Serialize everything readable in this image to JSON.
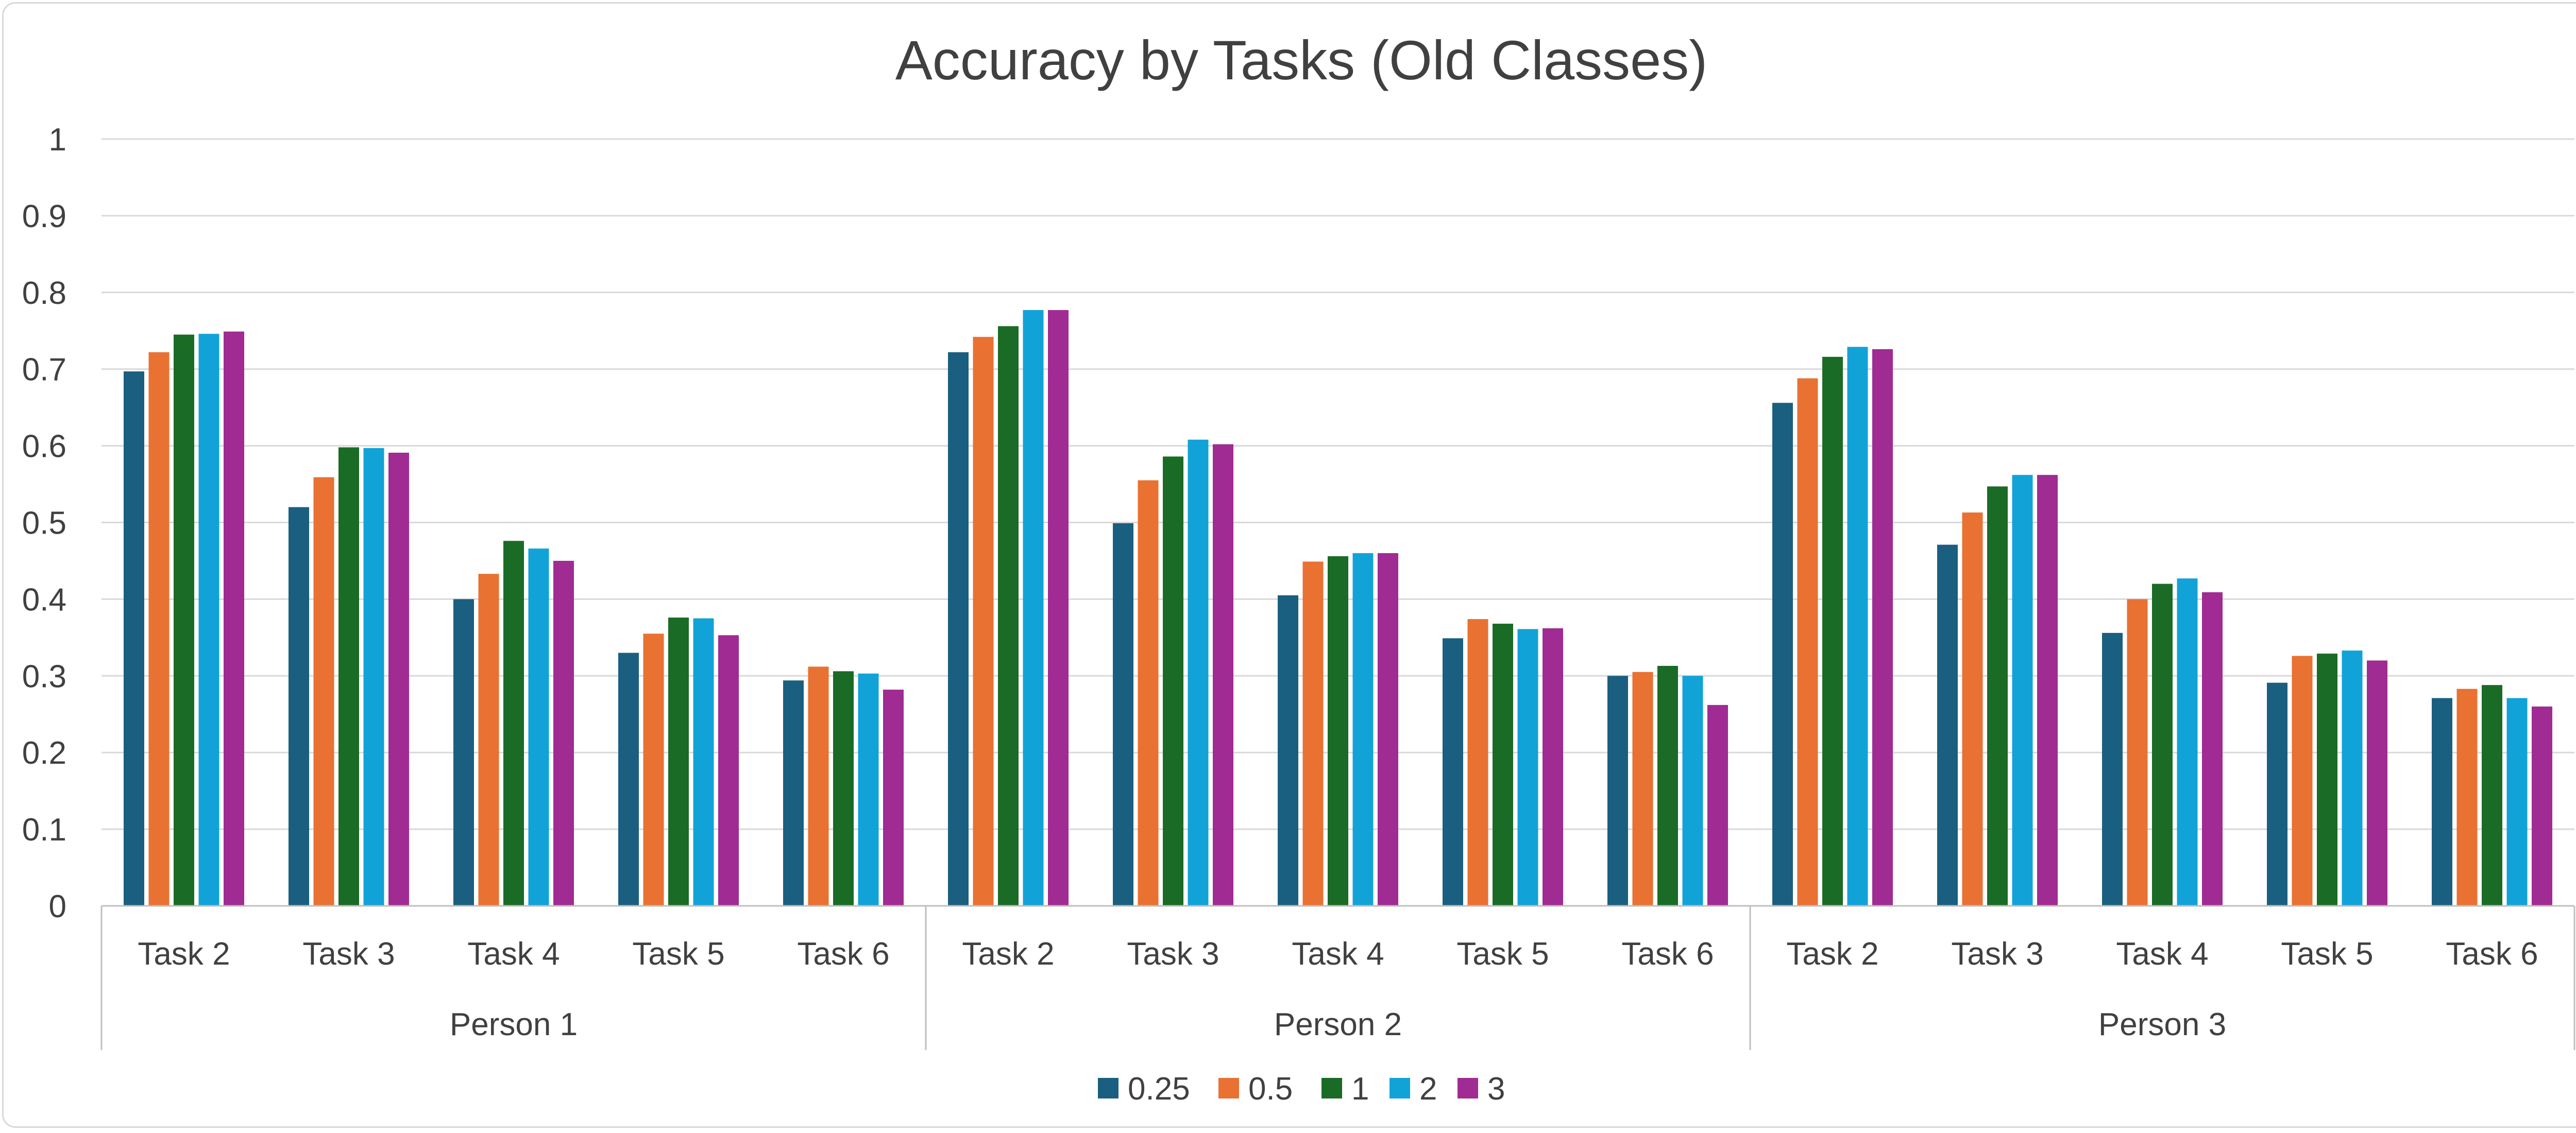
{
  "chart_data": {
    "type": "bar",
    "title": "Accuracy by Tasks (Old Classes)",
    "xlabel": "",
    "ylabel": "",
    "ylim": [
      0,
      1
    ],
    "yticks": [
      0,
      0.1,
      0.2,
      0.3,
      0.4,
      0.5,
      0.6,
      0.7,
      0.8,
      0.9,
      1
    ],
    "ytick_labels": [
      "0",
      "0.1",
      "0.2",
      "0.3",
      "0.4",
      "0.5",
      "0.6",
      "0.7",
      "0.8",
      "0.9",
      "1"
    ],
    "grid": true,
    "legend_position": "bottom-center",
    "groups": [
      {
        "name": "Person 1",
        "categories": [
          "Task 2",
          "Task 3",
          "Task 4",
          "Task 5",
          "Task 6"
        ]
      },
      {
        "name": "Person 2",
        "categories": [
          "Task 2",
          "Task 3",
          "Task 4",
          "Task 5",
          "Task 6"
        ]
      },
      {
        "name": "Person 3",
        "categories": [
          "Task 2",
          "Task 3",
          "Task 4",
          "Task 5",
          "Task 6"
        ]
      }
    ],
    "series": [
      {
        "name": "0.25",
        "color": "#1a5f7f",
        "values": [
          0.697,
          0.52,
          0.4,
          0.33,
          0.294,
          0.722,
          0.499,
          0.405,
          0.349,
          0.3,
          0.656,
          0.471,
          0.356,
          0.291,
          0.271
        ]
      },
      {
        "name": "0.5",
        "color": "#e97132",
        "values": [
          0.722,
          0.559,
          0.433,
          0.355,
          0.312,
          0.742,
          0.555,
          0.449,
          0.374,
          0.305,
          0.688,
          0.513,
          0.4,
          0.326,
          0.283
        ]
      },
      {
        "name": "1",
        "color": "#1a6b26",
        "values": [
          0.745,
          0.598,
          0.476,
          0.376,
          0.306,
          0.756,
          0.586,
          0.456,
          0.368,
          0.313,
          0.716,
          0.547,
          0.42,
          0.329,
          0.288
        ]
      },
      {
        "name": "2",
        "color": "#11a3d8",
        "values": [
          0.746,
          0.597,
          0.466,
          0.375,
          0.303,
          0.777,
          0.608,
          0.46,
          0.361,
          0.3,
          0.729,
          0.562,
          0.427,
          0.333,
          0.271
        ]
      },
      {
        "name": "3",
        "color": "#a02b93",
        "values": [
          0.749,
          0.591,
          0.45,
          0.353,
          0.282,
          0.777,
          0.602,
          0.46,
          0.362,
          0.262,
          0.726,
          0.562,
          0.409,
          0.32,
          0.26
        ]
      }
    ]
  },
  "colors": {
    "gridline": "#d9d9d9",
    "axis": "#bfbfbf",
    "text": "#404040",
    "border": "#d9d9d9",
    "background": "#ffffff"
  }
}
